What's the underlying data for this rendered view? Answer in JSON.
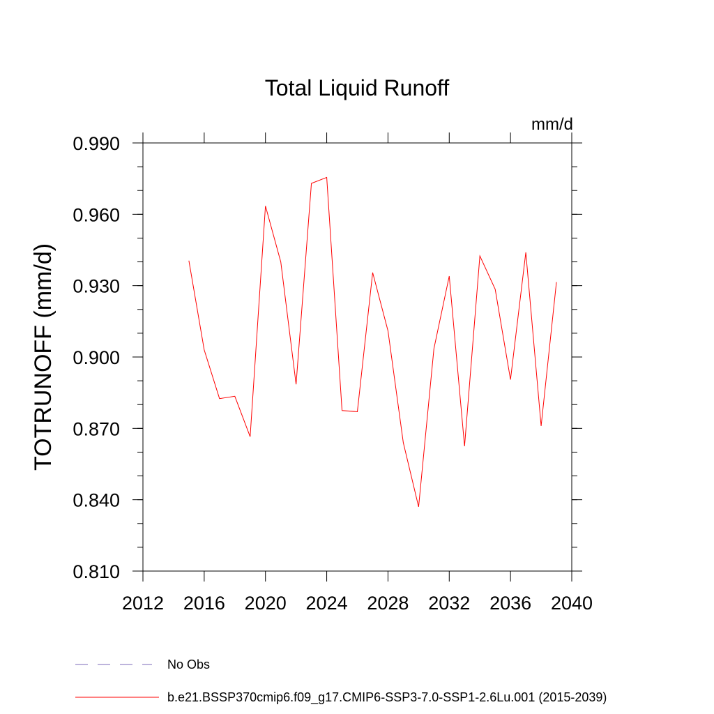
{
  "chart_data": {
    "type": "line",
    "title": "Total Liquid Runoff",
    "units": "mm/d",
    "ylabel": "TOTRUNOFF  (mm/d)",
    "xlabel": "",
    "xlim": [
      2012,
      2040
    ],
    "ylim": [
      0.81,
      0.99
    ],
    "xticks": [
      2012,
      2016,
      2020,
      2024,
      2028,
      2032,
      2036,
      2040
    ],
    "xtick_labels": [
      "2012",
      "2016",
      "2020",
      "2024",
      "2028",
      "2032",
      "2036",
      "2040"
    ],
    "yticks": [
      0.81,
      0.84,
      0.87,
      0.9,
      0.93,
      0.96,
      0.99
    ],
    "ytick_labels": [
      "0.810",
      "0.840",
      "0.870",
      "0.900",
      "0.930",
      "0.960",
      "0.990"
    ],
    "grid": false,
    "legend_position": "bottom",
    "series": [
      {
        "name": "b.e21.BSSP370cmip6.f09_g17.CMIP6-SSP3-7.0-SSP1-2.6Lu.001 (2015-2039)",
        "color": "#ff0000",
        "style": "solid",
        "x": [
          2015,
          2016,
          2017,
          2018,
          2019,
          2020,
          2021,
          2022,
          2023,
          2024,
          2025,
          2026,
          2027,
          2028,
          2029,
          2030,
          2031,
          2032,
          2033,
          2034,
          2035,
          2036,
          2037,
          2038,
          2039
        ],
        "values": [
          0.9405,
          0.903,
          0.8825,
          0.8835,
          0.8665,
          0.9635,
          0.94,
          0.8885,
          0.973,
          0.9755,
          0.8775,
          0.877,
          0.9355,
          0.911,
          0.864,
          0.837,
          0.9035,
          0.934,
          0.8625,
          0.9425,
          0.9285,
          0.8905,
          0.944,
          0.871,
          0.9315
        ]
      }
    ],
    "legend": [
      {
        "label": "No Obs",
        "color": "#7b68b8",
        "style": "dashed"
      },
      {
        "label": "b.e21.BSSP370cmip6.f09_g17.CMIP6-SSP3-7.0-SSP1-2.6Lu.001 (2015-2039)",
        "color": "#ff0000",
        "style": "solid"
      }
    ]
  }
}
